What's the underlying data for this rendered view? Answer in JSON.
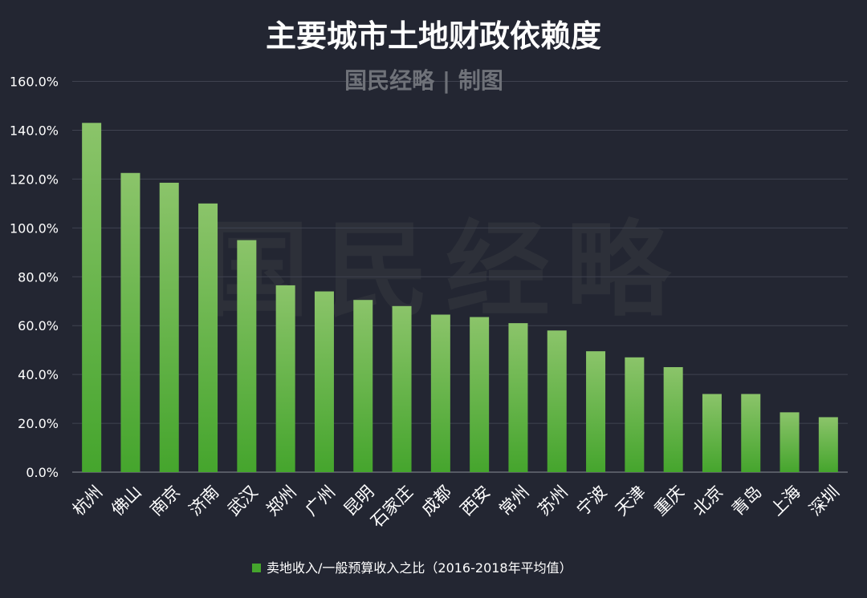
{
  "chart_data": {
    "type": "bar",
    "title": "主要城市土地财政依赖度",
    "subtitle": "国民经略 | 制图",
    "watermark": "国民经略",
    "categories": [
      "杭州",
      "佛山",
      "南京",
      "济南",
      "武汉",
      "郑州",
      "广州",
      "昆明",
      "石家庄",
      "成都",
      "西安",
      "常州",
      "苏州",
      "宁波",
      "天津",
      "重庆",
      "北京",
      "青岛",
      "上海",
      "深圳"
    ],
    "series": [
      {
        "name": "卖地收入/一般预算收入之比（2016-2018年平均值）",
        "values": [
          143.0,
          122.5,
          118.5,
          110.0,
          95.0,
          76.5,
          74.0,
          70.5,
          68.0,
          64.5,
          63.5,
          61.0,
          58.0,
          49.5,
          47.0,
          43.0,
          32.0,
          32.0,
          24.5,
          22.5
        ]
      }
    ],
    "y_ticks": [
      "0.0%",
      "20.0%",
      "40.0%",
      "60.0%",
      "80.0%",
      "100.0%",
      "120.0%",
      "140.0%",
      "160.0%"
    ],
    "ylim": [
      0,
      160
    ],
    "y_unit": "%",
    "grid": true,
    "legend_position": "bottom-center",
    "colors": {
      "background": "#232632",
      "bar_top": "#8bc46a",
      "bar_bottom": "#45a52d",
      "grid": "#3f4350",
      "text": "#ffffff",
      "subtitle": "#6f7279",
      "watermark": "#2d3039"
    }
  }
}
